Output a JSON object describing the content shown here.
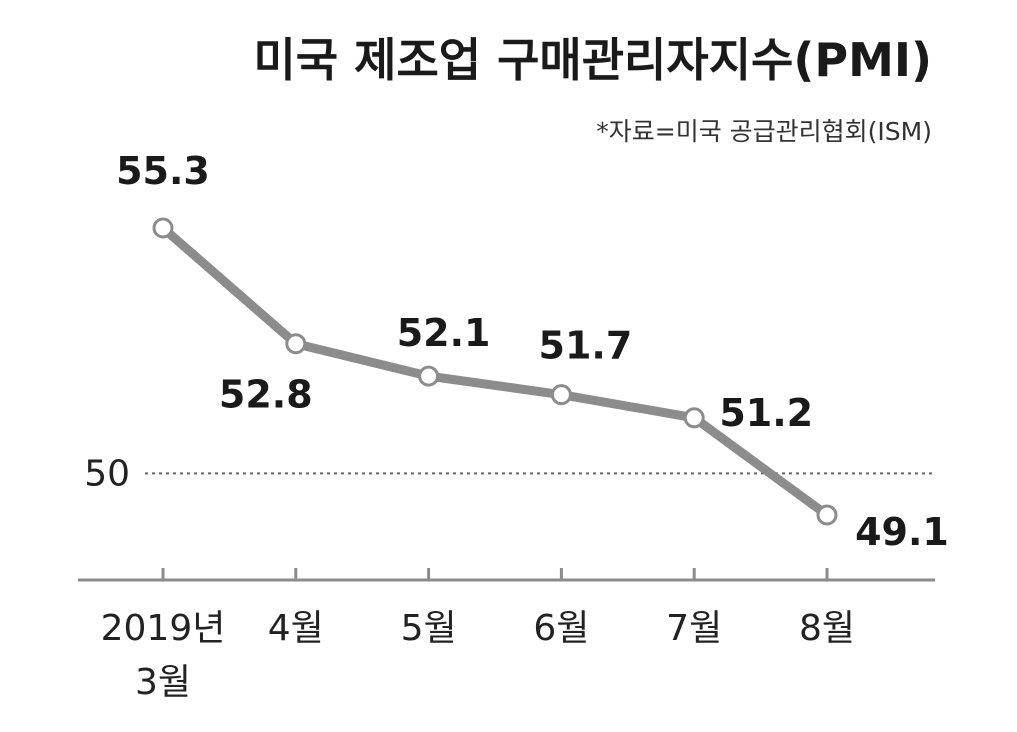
{
  "chart_data": {
    "type": "line",
    "title": "미국 제조업 구매관리자지수(PMI)",
    "source": "*자료=미국 공급관리협회(ISM)",
    "categories": [
      [
        "2019년",
        "3월"
      ],
      [
        "4월"
      ],
      [
        "5월"
      ],
      [
        "6월"
      ],
      [
        "7월"
      ],
      [
        "8월"
      ]
    ],
    "values": [
      55.3,
      52.8,
      52.1,
      51.7,
      51.2,
      49.1
    ],
    "data_labels": [
      "55.3",
      "52.8",
      "52.1",
      "51.7",
      "51.2",
      "49.1"
    ],
    "reference_line": {
      "value": 50,
      "label": "50",
      "style": "dotted"
    },
    "ylim": [
      47.5,
      57.0
    ],
    "grid": false,
    "legend": "none",
    "colors": {
      "line": "#8c8c8c",
      "marker_fill": "#ffffff",
      "axis": "#8c8c8c",
      "reference": "#666666",
      "text": "#1a1a1a"
    }
  }
}
